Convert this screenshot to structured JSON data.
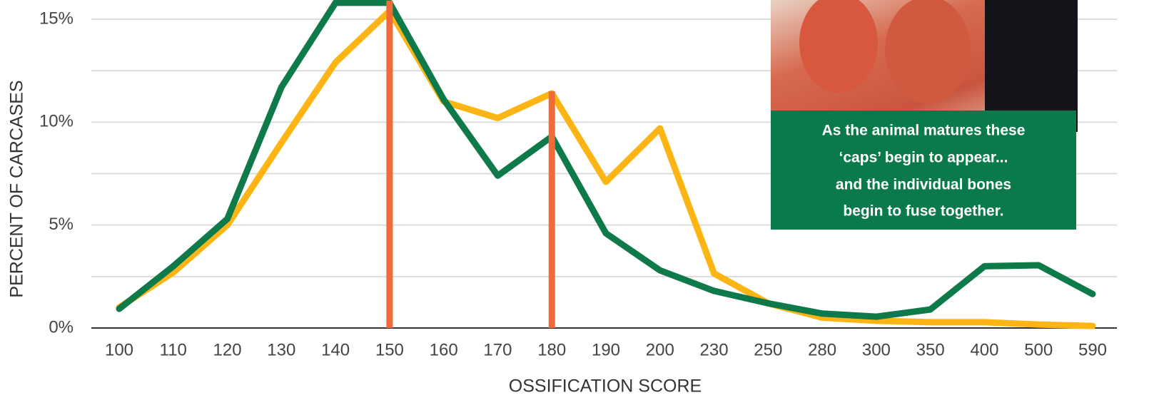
{
  "chart_data": {
    "type": "line",
    "x_label": "OSSIFICATION SCORE",
    "y_label": "PERCENT OF CARCASES",
    "categories": [
      "100",
      "110",
      "120",
      "130",
      "140",
      "150",
      "160",
      "170",
      "180",
      "190",
      "200",
      "230",
      "250",
      "280",
      "300",
      "350",
      "400",
      "500",
      "590"
    ],
    "series": [
      {
        "color": "#0e7a4a",
        "values": [
          0.93,
          3.0,
          5.3,
          11.7,
          15.8,
          15.8,
          11.1,
          7.4,
          9.3,
          4.6,
          2.8,
          1.8,
          1.2,
          0.7,
          0.55,
          0.9,
          3.0,
          3.05,
          1.65
        ]
      },
      {
        "color": "#fdb515",
        "values": [
          1.0,
          2.7,
          5.0,
          9.0,
          12.9,
          15.4,
          11.0,
          10.2,
          11.4,
          7.1,
          9.7,
          2.65,
          1.2,
          0.5,
          0.35,
          0.28,
          0.28,
          0.17,
          0.1
        ]
      }
    ],
    "markers": [
      {
        "category": "150",
        "value": 15.9
      },
      {
        "category": "180",
        "value": 11.5
      }
    ],
    "marker_color": "#f26a3a",
    "ylim": [
      0,
      15.9
    ],
    "yticks": [
      {
        "value": 0,
        "label": "0%"
      },
      {
        "value": 5,
        "label": "5%"
      },
      {
        "value": 10,
        "label": "10%"
      },
      {
        "value": 15,
        "label": "15%"
      }
    ],
    "minor_grid": [
      2.5,
      7.5,
      12.5
    ],
    "grid": true,
    "annotation": [
      "As the animal matures these",
      "‘caps’ begin to appear...",
      "and the individual bones",
      "begin to fuse together."
    ]
  }
}
